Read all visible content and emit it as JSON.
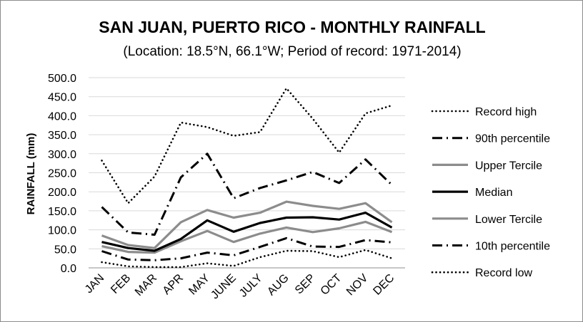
{
  "chart_data": {
    "type": "line",
    "title": "SAN JUAN, PUERTO RICO - MONTHLY RAINFALL",
    "subtitle": "(Location: 18.5°N, 66.1°W; Period of record: 1971-2014)",
    "ylabel": "RAINFALL (mm)",
    "xlabel": "",
    "ylim": [
      0,
      500
    ],
    "yticks": [
      "0.0",
      "50.0",
      "100.0",
      "150.0",
      "200.0",
      "250.0",
      "300.0",
      "350.0",
      "400.0",
      "450.0",
      "500.0"
    ],
    "grid": "horizontal",
    "legend_position": "right",
    "categories": [
      "JAN",
      "FEB",
      "MAR",
      "APR",
      "MAY",
      "JUNE",
      "JULY",
      "AUG",
      "SEP",
      "OCT",
      "NOV",
      "DEC"
    ],
    "series": [
      {
        "name": "Record high",
        "style": "dotted",
        "color": "#000000",
        "values": [
          282,
          170,
          240,
          382,
          370,
          347,
          357,
          472,
          392,
          303,
          406,
          427
        ]
      },
      {
        "name": "90th percentile",
        "style": "dashdot",
        "color": "#000000",
        "values": [
          160,
          93,
          87,
          238,
          300,
          183,
          210,
          230,
          252,
          223,
          285,
          218
        ]
      },
      {
        "name": "Upper Tercile",
        "style": "solid-gray",
        "color": "#8c8c8c",
        "values": [
          85,
          60,
          52,
          120,
          152,
          132,
          145,
          174,
          163,
          155,
          170,
          120
        ]
      },
      {
        "name": "Median",
        "style": "solid-black",
        "color": "#000000",
        "values": [
          68,
          52,
          45,
          76,
          125,
          95,
          118,
          132,
          133,
          127,
          145,
          106
        ]
      },
      {
        "name": "Lower Tercile",
        "style": "solid-gray",
        "color": "#8c8c8c",
        "values": [
          57,
          42,
          40,
          70,
          97,
          68,
          90,
          106,
          94,
          104,
          121,
          94
        ]
      },
      {
        "name": "10th percentile",
        "style": "dashdot",
        "color": "#000000",
        "values": [
          44,
          22,
          20,
          25,
          40,
          33,
          55,
          78,
          56,
          55,
          73,
          67
        ]
      },
      {
        "name": "Record low",
        "style": "dotted",
        "color": "#000000",
        "values": [
          15,
          4,
          2,
          2,
          12,
          5,
          28,
          45,
          44,
          28,
          47,
          25
        ]
      }
    ]
  }
}
